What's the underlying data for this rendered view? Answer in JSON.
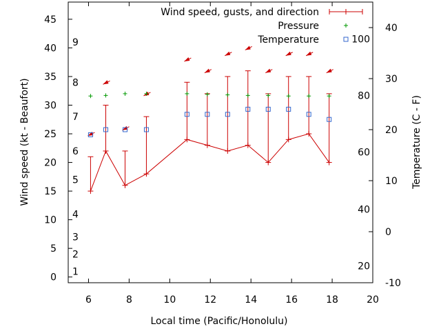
{
  "chart_data": {
    "type": "line",
    "xlabel": "Local time (Pacific/Honolulu)",
    "ylabel": "Wind speed (kt - Beaufort)",
    "y2label": "Temperature (C - F)",
    "xlim": [
      5,
      20
    ],
    "ylim": [
      -1,
      48
    ],
    "y2lim": [
      -10,
      45
    ],
    "x_ticks": [
      6,
      8,
      10,
      12,
      14,
      16,
      18,
      20
    ],
    "y_ticks": [
      0,
      5,
      10,
      15,
      20,
      25,
      30,
      35,
      40,
      45
    ],
    "y2_ticks": [
      -10,
      0,
      10,
      20,
      30,
      40
    ],
    "beaufort_labels": [
      {
        "label": "1",
        "y": 1
      },
      {
        "label": "2",
        "y": 4
      },
      {
        "label": "3",
        "y": 7
      },
      {
        "label": "4",
        "y": 11
      },
      {
        "label": "5",
        "y": 17
      },
      {
        "label": "6",
        "y": 22
      },
      {
        "label": "7",
        "y": 28
      },
      {
        "label": "8",
        "y": 34
      },
      {
        "label": "9",
        "y": 41
      }
    ],
    "fahrenheit_labels": [
      {
        "label": "20",
        "temp": -6.7
      },
      {
        "label": "40",
        "temp": 4.4
      },
      {
        "label": "60",
        "temp": 15.6
      },
      {
        "label": "80",
        "temp": 26.7
      },
      {
        "label": "100",
        "temp": 37.8
      }
    ],
    "legend": [
      {
        "label": "Wind speed, gusts, and direction",
        "color": "#cc0000",
        "marker": "errorbar"
      },
      {
        "label": "Pressure",
        "color": "#009900",
        "marker": "plus"
      },
      {
        "label": "Temperature",
        "color": "#3366cc",
        "marker": "square"
      }
    ],
    "colors": {
      "wind": "#cc0000",
      "pressure": "#009900",
      "temperature": "#3366cc",
      "axis": "#000000"
    },
    "series": [
      {
        "name": "Wind speed",
        "x": [
          6.1,
          6.85,
          7.8,
          8.85,
          10.85,
          11.85,
          12.85,
          13.85,
          14.85,
          15.85,
          16.85,
          17.85
        ],
        "values": [
          15,
          22,
          16,
          18,
          24,
          23,
          22,
          23,
          20,
          24,
          25,
          20
        ]
      },
      {
        "name": "Gusts",
        "x": [
          6.1,
          6.85,
          7.8,
          8.85,
          10.85,
          11.85,
          12.85,
          13.85,
          14.85,
          15.85,
          16.85,
          17.85
        ],
        "values": [
          21,
          30,
          22,
          28,
          34,
          32,
          35,
          36,
          32,
          35,
          35,
          32
        ]
      },
      {
        "name": "Direction arrows",
        "x": [
          6.1,
          6.85,
          7.8,
          8.85,
          10.85,
          11.85,
          12.85,
          13.85,
          14.85,
          15.85,
          16.85,
          17.85
        ],
        "values": [
          25,
          34,
          26,
          32,
          38,
          36,
          39,
          40,
          36,
          39,
          39,
          36
        ]
      },
      {
        "name": "Pressure",
        "x": [
          6.1,
          6.85,
          7.8,
          8.85,
          10.85,
          11.85,
          12.85,
          13.85,
          14.85,
          15.85,
          16.85,
          17.85
        ],
        "values": [
          31.6,
          31.7,
          32.0,
          32.0,
          32.0,
          31.9,
          31.8,
          31.7,
          31.7,
          31.6,
          31.6,
          31.6
        ]
      },
      {
        "name": "Temperature",
        "x": [
          6.1,
          6.85,
          7.8,
          8.85,
          10.85,
          11.85,
          12.85,
          13.85,
          14.85,
          15.85,
          16.85,
          17.85
        ],
        "values": [
          19,
          20,
          20,
          20,
          23,
          23,
          23,
          24,
          24,
          24,
          23,
          22
        ]
      }
    ]
  }
}
